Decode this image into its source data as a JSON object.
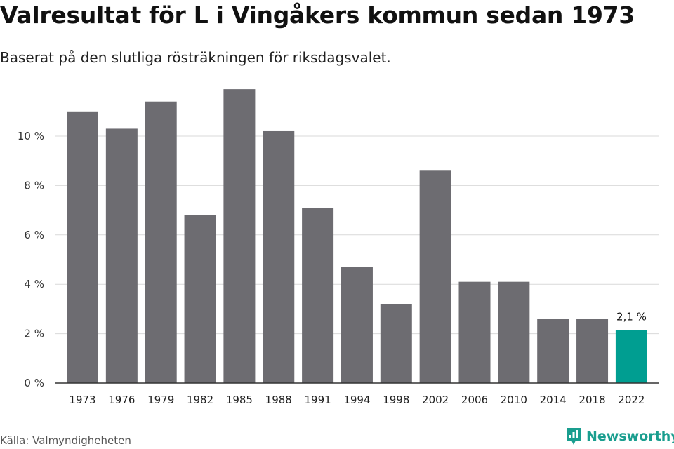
{
  "header": {
    "title": "Valresultat för L i Vingåkers kommun sedan 1973",
    "subtitle": "Baserat på den slutliga rösträkningen för riksdagsvalet."
  },
  "footer": {
    "source": "Källa: Valmyndigheheten",
    "brand": "Newsworthy",
    "brand_icon": "newsworthy-logo-icon"
  },
  "chart_data": {
    "type": "bar",
    "title": "Valresultat för L i Vingåkers kommun sedan 1973",
    "subtitle": "Baserat på den slutliga rösträkningen för riksdagsvalet.",
    "xlabel": "",
    "ylabel": "",
    "categories": [
      "1973",
      "1976",
      "1979",
      "1982",
      "1985",
      "1988",
      "1991",
      "1994",
      "1998",
      "2002",
      "2006",
      "2010",
      "2014",
      "2018",
      "2022"
    ],
    "values": [
      11.0,
      10.3,
      11.4,
      6.8,
      11.9,
      10.2,
      7.1,
      4.7,
      3.2,
      8.6,
      4.1,
      4.1,
      2.6,
      2.6,
      2.15
    ],
    "ylim": [
      0,
      12.5
    ],
    "yticks": [
      0,
      2,
      4,
      6,
      8,
      10
    ],
    "ytick_labels": [
      "0 %",
      "2 %",
      "4 %",
      "6 %",
      "8 %",
      "10 %"
    ],
    "highlight_index": 14,
    "highlight_label": "2,1 %",
    "grid": true,
    "colors": {
      "bar": "#6d6c71",
      "highlight": "#009e91",
      "grid": "#d9d9d9",
      "axis": "#333333"
    }
  }
}
